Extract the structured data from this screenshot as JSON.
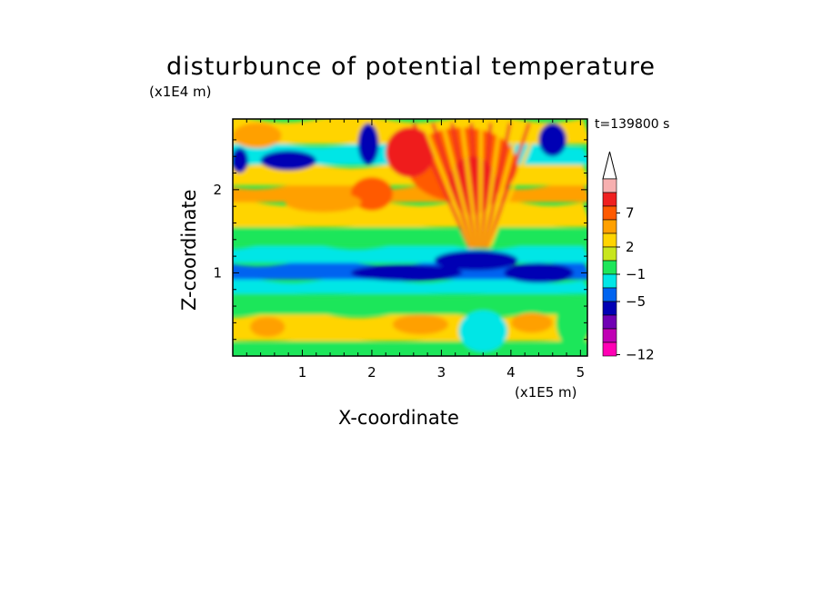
{
  "chart_data": {
    "type": "heatmap",
    "title": "disturbunce of potential temperature",
    "xlabel": "X-coordinate",
    "ylabel": "Z-coordinate",
    "x_unit": "(x1E5 m)",
    "y_unit": "(x1E4 m)",
    "annotation": "t=139800 s",
    "xlim": [
      0,
      5.1
    ],
    "ylim": [
      0,
      2.85
    ],
    "x_ticks": [
      "1",
      "2",
      "3",
      "4",
      "5"
    ],
    "y_ticks": [
      "1",
      "2"
    ],
    "colorbar": {
      "labels": [
        "7",
        "2",
        "−1",
        "−5",
        "−12"
      ],
      "colors": [
        "#f7b0b0",
        "#ef1f1f",
        "#ff5a00",
        "#ffa000",
        "#ffd400",
        "#c8e61e",
        "#1ee65a",
        "#00e6e6",
        "#0064f0",
        "#0000b4",
        "#7000b4",
        "#c000b4",
        "#ff00b4"
      ]
    },
    "bands": [
      {
        "z": [
          0.0,
          0.18
        ],
        "color": "#1ee65a"
      },
      {
        "z": [
          0.18,
          0.5
        ],
        "color": "#ffd400"
      },
      {
        "z": [
          0.5,
          0.75
        ],
        "color": "#1ee65a"
      },
      {
        "z": [
          0.75,
          0.92
        ],
        "color": "#00e6e6"
      },
      {
        "z": [
          0.92,
          1.12
        ],
        "color": "#0064f0"
      },
      {
        "z": [
          1.12,
          1.32
        ],
        "color": "#00e6e6"
      },
      {
        "z": [
          1.32,
          1.55
        ],
        "color": "#1ee65a"
      },
      {
        "z": [
          1.55,
          1.85
        ],
        "color": "#ffd400"
      },
      {
        "z": [
          1.85,
          2.05
        ],
        "color": "#ffa000"
      },
      {
        "z": [
          2.05,
          2.3
        ],
        "color": "#ffd400"
      },
      {
        "z": [
          2.3,
          2.55
        ],
        "color": "#00e6e6"
      },
      {
        "z": [
          2.55,
          2.85
        ],
        "color": "#ffd400"
      }
    ],
    "features": [
      {
        "x": 3.3,
        "z": 2.3,
        "rx": 0.8,
        "rz": 0.45,
        "color": "#ff5a00"
      },
      {
        "x": 2.55,
        "z": 2.45,
        "rx": 0.35,
        "rz": 0.3,
        "color": "#ef1f1f"
      },
      {
        "x": 3.45,
        "z": 2.05,
        "rx": 0.35,
        "rz": 0.35,
        "color": "#ef1f1f"
      },
      {
        "x": 2.0,
        "z": 1.95,
        "rx": 0.3,
        "rz": 0.2,
        "color": "#ff5a00"
      },
      {
        "x": 0.8,
        "z": 2.35,
        "rx": 0.4,
        "rz": 0.12,
        "color": "#0000b4"
      },
      {
        "x": 1.95,
        "z": 2.55,
        "rx": 0.15,
        "rz": 0.25,
        "color": "#0000b4"
      },
      {
        "x": 4.6,
        "z": 2.6,
        "rx": 0.2,
        "rz": 0.2,
        "color": "#0000b4"
      },
      {
        "x": 0.1,
        "z": 2.35,
        "rx": 0.12,
        "rz": 0.15,
        "color": "#0000b4"
      },
      {
        "x": 3.5,
        "z": 1.15,
        "rx": 0.6,
        "rz": 0.12,
        "color": "#0000b4"
      },
      {
        "x": 2.5,
        "z": 1.0,
        "rx": 0.8,
        "rz": 0.1,
        "color": "#0000b4"
      },
      {
        "x": 4.4,
        "z": 1.0,
        "rx": 0.5,
        "rz": 0.12,
        "color": "#0000b4"
      },
      {
        "x": 0.5,
        "z": 0.35,
        "rx": 0.25,
        "rz": 0.12,
        "color": "#ffa000"
      },
      {
        "x": 2.7,
        "z": 0.38,
        "rx": 0.4,
        "rz": 0.12,
        "color": "#ffa000"
      },
      {
        "x": 4.3,
        "z": 0.4,
        "rx": 0.3,
        "rz": 0.12,
        "color": "#ffa000"
      },
      {
        "x": 1.3,
        "z": 1.85,
        "rx": 0.55,
        "rz": 0.12,
        "color": "#ffa000"
      },
      {
        "x": 0.35,
        "z": 2.65,
        "rx": 0.35,
        "rz": 0.15,
        "color": "#ffa000"
      },
      {
        "x": 3.6,
        "z": 0.3,
        "rx": 0.35,
        "rz": 0.25,
        "color": "#00e6e6"
      },
      {
        "x": 4.9,
        "z": 0.4,
        "rx": 0.25,
        "rz": 0.3,
        "color": "#1ee65a"
      }
    ],
    "stripes": {
      "x_range": [
        2.6,
        4.4
      ],
      "count": 14,
      "z_range": [
        1.3,
        2.8
      ],
      "colors": [
        "#ef1f1f",
        "#ffd400"
      ]
    }
  }
}
